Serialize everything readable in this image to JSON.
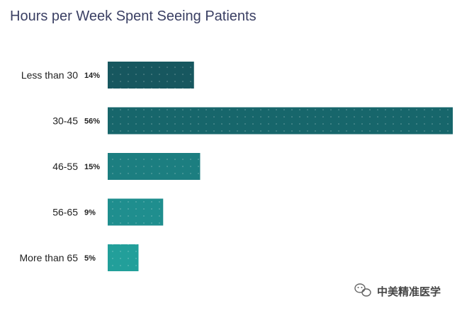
{
  "chart_data": {
    "type": "bar",
    "orientation": "horizontal",
    "title": "Hours per Week Spent Seeing Patients",
    "categories": [
      "Less than 30",
      "30-45",
      "46-55",
      "56-65",
      "More than 65"
    ],
    "values": [
      14,
      56,
      15,
      9,
      5
    ],
    "value_labels": [
      "14%",
      "56%",
      "15%",
      "9%",
      "5%"
    ],
    "unit": "%",
    "xlim": [
      0,
      56
    ],
    "grid": false,
    "legend": "none",
    "colors": [
      "#17575f",
      "#17666b",
      "#1c7e80",
      "#1f8e8e",
      "#229f9a"
    ]
  },
  "watermark": {
    "icon": "wechat-icon",
    "text": "中美精准医学"
  }
}
